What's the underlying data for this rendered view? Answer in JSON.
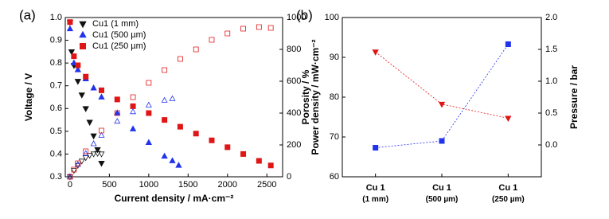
{
  "chart_data": [
    {
      "type": "scatter",
      "label": "(a)",
      "xlabel": "Current density / mA·cm⁻²",
      "ylabel": "Voltage / V",
      "y2label": "Power density / mW·cm⁻²",
      "xlim": [
        -60,
        2700
      ],
      "xticks": [
        0,
        500,
        1000,
        1500,
        2000,
        2500
      ],
      "ylim": [
        0.3,
        1.0
      ],
      "yticks": [
        0.3,
        0.4,
        0.5,
        0.6,
        0.7,
        0.8,
        0.9,
        {
          "value": 1,
          "label": "1.0"
        }
      ],
      "y2lim": [
        0,
        1000
      ],
      "y2ticks": [
        0,
        200,
        400,
        600,
        800,
        1000
      ],
      "legend": "upper left",
      "series": [
        {
          "name": "Cu1 (1 mm)",
          "color": "#111111",
          "marker": "triangle-down",
          "filled": true,
          "x": [
            0,
            20,
            50,
            100,
            150,
            200,
            250,
            300,
            350,
            400
          ],
          "values": [
            0.98,
            0.85,
            0.79,
            0.72,
            0.66,
            0.6,
            0.54,
            0.48,
            0.42,
            0.36
          ]
        },
        {
          "name": "Cu1 (500 µm)",
          "color": "#2233ee",
          "marker": "triangle-up",
          "filled": true,
          "x": [
            0,
            50,
            100,
            200,
            300,
            400,
            600,
            800,
            1000,
            1200,
            1300,
            1380
          ],
          "values": [
            0.95,
            0.8,
            0.77,
            0.73,
            0.69,
            0.65,
            0.58,
            0.51,
            0.45,
            0.39,
            0.37,
            0.35
          ]
        },
        {
          "name": "Cu1 (250 µm)",
          "color": "#e01515",
          "marker": "square",
          "filled": true,
          "x": [
            0,
            50,
            100,
            200,
            400,
            600,
            800,
            1000,
            1200,
            1400,
            1600,
            1800,
            2000,
            2200,
            2400,
            2550
          ],
          "values": [
            0.98,
            0.83,
            0.79,
            0.74,
            0.68,
            0.64,
            0.61,
            0.58,
            0.55,
            0.52,
            0.49,
            0.46,
            0.43,
            0.4,
            0.37,
            0.35
          ]
        },
        {
          "color": "#111111",
          "marker": "triangle-down",
          "filled": false,
          "axis": "y2",
          "x": [
            0,
            50,
            100,
            150,
            200,
            250,
            300,
            350,
            400
          ],
          "values": [
            0,
            40,
            72,
            99,
            120,
            135,
            144,
            147,
            144
          ]
        },
        {
          "color": "#2233ee",
          "marker": "triangle-up",
          "filled": false,
          "axis": "y2",
          "x": [
            0,
            100,
            200,
            300,
            400,
            600,
            800,
            1000,
            1200,
            1300
          ],
          "values": [
            0,
            77,
            146,
            207,
            260,
            348,
            408,
            450,
            480,
            490
          ]
        },
        {
          "color": "#e01515",
          "marker": "square",
          "filled": false,
          "axis": "y2",
          "x": [
            0,
            50,
            100,
            200,
            400,
            600,
            800,
            1000,
            1200,
            1400,
            1600,
            1800,
            2000,
            2200,
            2400,
            2550
          ],
          "values": [
            0,
            45,
            85,
            160,
            290,
            400,
            500,
            590,
            670,
            740,
            800,
            860,
            900,
            930,
            940,
            935
          ]
        }
      ]
    },
    {
      "type": "line",
      "label": "(b)",
      "ylabel": "Porosity / %",
      "y2label": "Pressure / bar",
      "categories": [
        "Cu 1 (1 mm)",
        "Cu 1 (500 µm)",
        "Cu 1 (250 µm)"
      ],
      "ylim": [
        60,
        100
      ],
      "yticks": [
        60,
        70,
        80,
        90,
        100
      ],
      "y2lim": [
        -0.5,
        2.0
      ],
      "y2ticks": [
        {
          "value": 0,
          "label": "0.0"
        },
        0.5,
        {
          "value": 1,
          "label": "1.0"
        },
        1.5,
        {
          "value": 2,
          "label": "2.0"
        }
      ],
      "series": [
        {
          "color": "#2233ee",
          "marker": "square",
          "filled": true,
          "values": [
            67.3,
            69.0,
            93.3
          ]
        },
        {
          "color": "#e01515",
          "marker": "triangle-down",
          "filled": true,
          "axis": "y2",
          "values": [
            1.46,
            0.64,
            0.42
          ]
        }
      ]
    }
  ]
}
